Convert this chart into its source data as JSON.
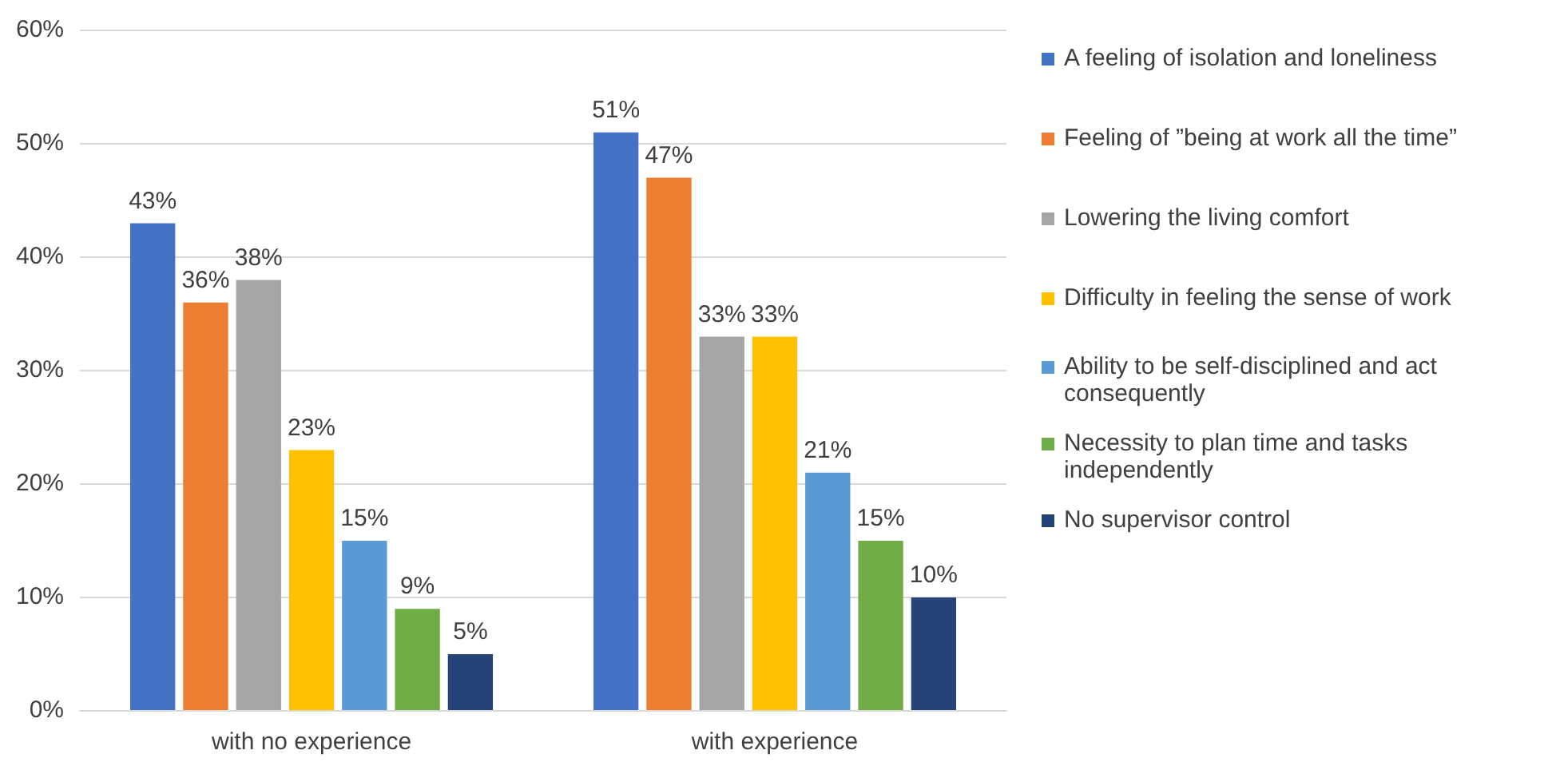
{
  "chart_data": {
    "type": "bar",
    "categories": [
      "with no experience",
      "with experience"
    ],
    "series": [
      {
        "name": "A feeling of isolation and loneliness",
        "color": "#4472c4",
        "values": [
          43,
          51
        ],
        "value_labels": [
          "43%",
          "51%"
        ]
      },
      {
        "name": "Feeling of ”being at work all the time”",
        "color": "#ed7d31",
        "values": [
          36,
          47
        ],
        "value_labels": [
          "36%",
          "47%"
        ]
      },
      {
        "name": "Lowering the living comfort",
        "color": "#a5a5a5",
        "values": [
          38,
          33
        ],
        "value_labels": [
          "38%",
          "33%"
        ]
      },
      {
        "name": "Difficulty in feeling the sense of work",
        "color": "#ffc000",
        "values": [
          23,
          33
        ],
        "value_labels": [
          "23%",
          "33%"
        ]
      },
      {
        "name": "Ability to be self-disciplined and act consequently",
        "color": "#5b9bd5",
        "values": [
          15,
          21
        ],
        "value_labels": [
          "15%",
          "21%"
        ]
      },
      {
        "name": "Necessity to plan time and tasks independently",
        "color": "#70ad47",
        "values": [
          9,
          15
        ],
        "value_labels": [
          "9%",
          "15%"
        ]
      },
      {
        "name": "No supervisor control",
        "color": "#264478",
        "values": [
          5,
          10
        ],
        "value_labels": [
          "5%",
          "10%"
        ]
      }
    ],
    "ylim": [
      0,
      60
    ],
    "yticks": [
      {
        "value": 0,
        "label": "0%"
      },
      {
        "value": 10,
        "label": "10%"
      },
      {
        "value": 20,
        "label": "20%"
      },
      {
        "value": 30,
        "label": "30%"
      },
      {
        "value": 40,
        "label": "40%"
      },
      {
        "value": 50,
        "label": "50%"
      },
      {
        "value": 60,
        "label": "60%"
      }
    ],
    "grid": "y",
    "legend": "right"
  }
}
